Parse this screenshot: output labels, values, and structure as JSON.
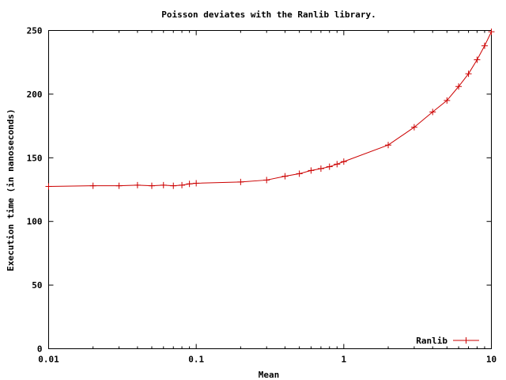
{
  "chart_data": {
    "type": "line",
    "title": "Poisson deviates with the Ranlib library.",
    "xlabel": "Mean",
    "ylabel": "Execution time (in nanoseconds)",
    "x_scale": "log",
    "xlim": [
      0.01,
      10
    ],
    "ylim": [
      0,
      250
    ],
    "x_ticks": [
      0.01,
      0.1,
      1,
      10
    ],
    "x_tick_labels": [
      "0.01",
      "0.1",
      "1",
      "10"
    ],
    "y_ticks": [
      0,
      50,
      100,
      150,
      200,
      250
    ],
    "y_tick_labels": [
      "0",
      "50",
      "100",
      "150",
      "200",
      "250"
    ],
    "grid": false,
    "legend_position": "bottom-right",
    "series": [
      {
        "name": "Ranlib",
        "color": "#cc0000",
        "marker": "plus",
        "x": [
          0.01,
          0.02,
          0.03,
          0.04,
          0.05,
          0.06,
          0.07,
          0.08,
          0.09,
          0.1,
          0.2,
          0.3,
          0.4,
          0.5,
          0.6,
          0.7,
          0.8,
          0.9,
          1,
          2,
          3,
          4,
          5,
          6,
          7,
          8,
          9,
          10
        ],
        "y": [
          127.5,
          128,
          128,
          128.5,
          128,
          128.5,
          128,
          128.5,
          129.5,
          130,
          131,
          132.5,
          135.5,
          137.5,
          140,
          141.5,
          143,
          145,
          147,
          160,
          174,
          186,
          195,
          206,
          216,
          227,
          238,
          249
        ]
      }
    ]
  }
}
